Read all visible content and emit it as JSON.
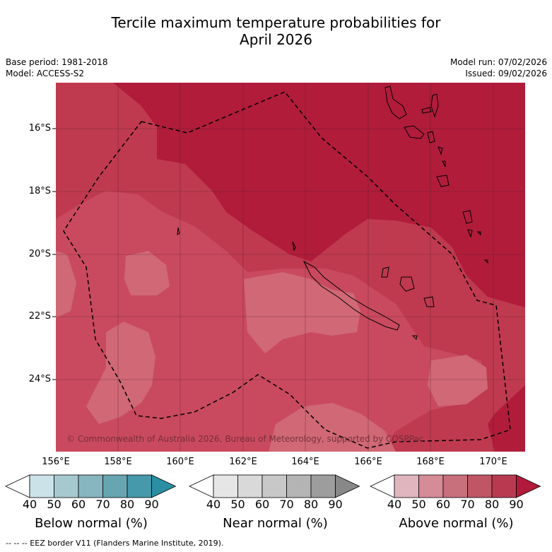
{
  "title_line1": "Tercile maximum temperature probabilities for",
  "title_line2": "April 2026",
  "base_period": "Base period: 1981-2018",
  "model": "Model: ACCESS-S2",
  "model_run": "Model run: 07/02/2026",
  "issued": "Issued: 09/02/2026",
  "copyright": "© Commonwealth of Australia 2026, Bureau of Meteorology, supported by COSPPac",
  "footnote": "--  --  -- EEZ border V11 (Flanders Marine Institute, 2019).",
  "lat_labels": [
    "16°S",
    "18°S",
    "20°S",
    "22°S",
    "24°S"
  ],
  "lon_labels": [
    "156°E",
    "158°E",
    "160°E",
    "162°E",
    "164°E",
    "166°E",
    "168°E",
    "170°E"
  ],
  "colorbars": [
    {
      "title": "Below normal (%)",
      "ticks": [
        "40",
        "50",
        "60",
        "70",
        "80",
        "90"
      ],
      "colors": [
        "#ffffff",
        "#cbe3e8",
        "#a6c9cf",
        "#87b6c0",
        "#67a5b1",
        "#4599ab",
        "#2b8fa3"
      ]
    },
    {
      "title": "Near normal (%)",
      "ticks": [
        "40",
        "50",
        "60",
        "70",
        "80",
        "90"
      ],
      "colors": [
        "#ffffff",
        "#e6e6e6",
        "#d9d9d9",
        "#c8c8c8",
        "#b4b4b4",
        "#9d9d9d",
        "#888888"
      ]
    },
    {
      "title": "Above normal (%)",
      "ticks": [
        "40",
        "50",
        "60",
        "70",
        "80",
        "90"
      ],
      "colors": [
        "#ffffff",
        "#e1b5bd",
        "#d58c97",
        "#c8707c",
        "#bf5565",
        "#b93a50",
        "#b11a3a"
      ]
    }
  ]
}
